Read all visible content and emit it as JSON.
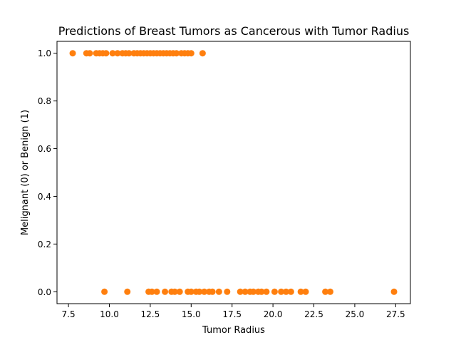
{
  "chart_data": {
    "type": "scatter",
    "title": "Predictions of Breast Tumors as Cancerous with Tumor Radius",
    "xlabel": "Tumor Radius",
    "ylabel": "Melignant (0) or Benign (1)",
    "xlim": [
      6.8,
      28.4
    ],
    "ylim": [
      -0.05,
      1.05
    ],
    "xticks": [
      7.5,
      10.0,
      12.5,
      15.0,
      17.5,
      20.0,
      22.5,
      25.0,
      27.5
    ],
    "xtick_labels": [
      "7.5",
      "10.0",
      "12.5",
      "15.0",
      "17.5",
      "20.0",
      "22.5",
      "25.0",
      "27.5"
    ],
    "yticks": [
      0.0,
      0.2,
      0.4,
      0.6,
      0.8,
      1.0
    ],
    "ytick_labels": [
      "0.0",
      "0.2",
      "0.4",
      "0.6",
      "0.8",
      "1.0"
    ],
    "grid": false,
    "legend": false,
    "marker_color": "#ff7f0e",
    "series": [
      {
        "color": "#ff7f0e",
        "points": [
          {
            "x": 7.76,
            "y": 1
          },
          {
            "x": 8.6,
            "y": 1
          },
          {
            "x": 8.8,
            "y": 1
          },
          {
            "x": 9.2,
            "y": 1
          },
          {
            "x": 9.4,
            "y": 1
          },
          {
            "x": 9.6,
            "y": 1
          },
          {
            "x": 9.8,
            "y": 1
          },
          {
            "x": 10.2,
            "y": 1
          },
          {
            "x": 10.5,
            "y": 1
          },
          {
            "x": 10.8,
            "y": 1
          },
          {
            "x": 11.0,
            "y": 1
          },
          {
            "x": 11.2,
            "y": 1
          },
          {
            "x": 11.5,
            "y": 1
          },
          {
            "x": 11.7,
            "y": 1
          },
          {
            "x": 11.9,
            "y": 1
          },
          {
            "x": 12.1,
            "y": 1
          },
          {
            "x": 12.3,
            "y": 1
          },
          {
            "x": 12.5,
            "y": 1
          },
          {
            "x": 12.7,
            "y": 1
          },
          {
            "x": 12.9,
            "y": 1
          },
          {
            "x": 13.1,
            "y": 1
          },
          {
            "x": 13.3,
            "y": 1
          },
          {
            "x": 13.5,
            "y": 1
          },
          {
            "x": 13.7,
            "y": 1
          },
          {
            "x": 13.9,
            "y": 1
          },
          {
            "x": 14.1,
            "y": 1
          },
          {
            "x": 14.4,
            "y": 1
          },
          {
            "x": 14.6,
            "y": 1
          },
          {
            "x": 14.8,
            "y": 1
          },
          {
            "x": 15.0,
            "y": 1
          },
          {
            "x": 15.7,
            "y": 1
          },
          {
            "x": 9.7,
            "y": 0
          },
          {
            "x": 11.1,
            "y": 0
          },
          {
            "x": 12.4,
            "y": 0
          },
          {
            "x": 12.6,
            "y": 0
          },
          {
            "x": 12.9,
            "y": 0
          },
          {
            "x": 13.4,
            "y": 0
          },
          {
            "x": 13.8,
            "y": 0
          },
          {
            "x": 14.0,
            "y": 0
          },
          {
            "x": 14.3,
            "y": 0
          },
          {
            "x": 14.8,
            "y": 0
          },
          {
            "x": 15.0,
            "y": 0
          },
          {
            "x": 15.3,
            "y": 0
          },
          {
            "x": 15.5,
            "y": 0
          },
          {
            "x": 15.8,
            "y": 0
          },
          {
            "x": 16.1,
            "y": 0
          },
          {
            "x": 16.3,
            "y": 0
          },
          {
            "x": 16.7,
            "y": 0
          },
          {
            "x": 17.2,
            "y": 0
          },
          {
            "x": 18.0,
            "y": 0
          },
          {
            "x": 18.3,
            "y": 0
          },
          {
            "x": 18.6,
            "y": 0
          },
          {
            "x": 18.8,
            "y": 0
          },
          {
            "x": 19.1,
            "y": 0
          },
          {
            "x": 19.3,
            "y": 0
          },
          {
            "x": 19.6,
            "y": 0
          },
          {
            "x": 20.1,
            "y": 0
          },
          {
            "x": 20.5,
            "y": 0
          },
          {
            "x": 20.8,
            "y": 0
          },
          {
            "x": 21.1,
            "y": 0
          },
          {
            "x": 21.7,
            "y": 0
          },
          {
            "x": 22.0,
            "y": 0
          },
          {
            "x": 23.2,
            "y": 0
          },
          {
            "x": 23.5,
            "y": 0
          },
          {
            "x": 27.4,
            "y": 0
          }
        ]
      }
    ]
  }
}
